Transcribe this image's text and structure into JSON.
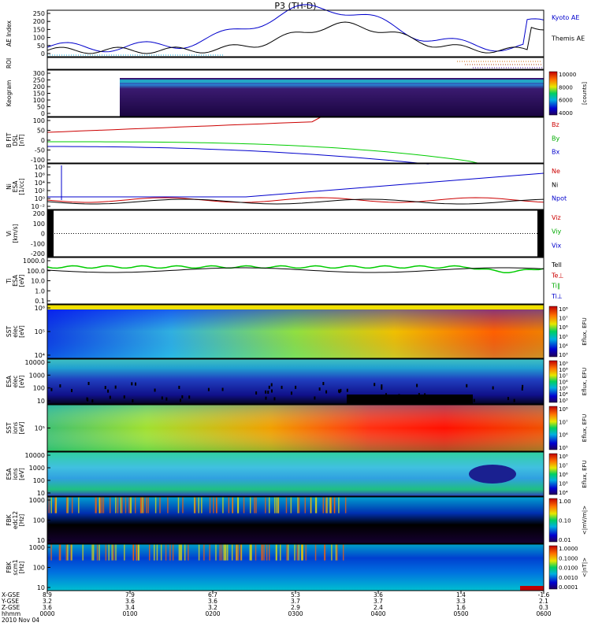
{
  "title": "P3 (TH-D)",
  "footer": {
    "row_labels": [
      "X-GSE",
      "Y-GSE",
      "Z-GSE",
      "hhmm",
      "2010 Nov 04"
    ],
    "columns": [
      {
        "x": "8.9",
        "y": "3.2",
        "z": "3.6",
        "t": "0000"
      },
      {
        "x": "7.9",
        "y": "3.6",
        "z": "3.4",
        "t": "0100"
      },
      {
        "x": "6.7",
        "y": "3.6",
        "z": "3.2",
        "t": "0200"
      },
      {
        "x": "5.3",
        "y": "3.7",
        "z": "2.9",
        "t": "0300"
      },
      {
        "x": "3.6",
        "y": "3.7",
        "z": "2.4",
        "t": "0400"
      },
      {
        "x": "1.4",
        "y": "3.3",
        "z": "1.6",
        "t": "0500"
      },
      {
        "x": "-1.6",
        "y": "2.1",
        "z": "0.3",
        "t": "0600"
      }
    ]
  },
  "panels": [
    {
      "id": "ae",
      "ylabel": [
        "AE Index"
      ],
      "ticks": [
        "250",
        "200",
        "150",
        "100",
        "50",
        "0"
      ],
      "right": [
        {
          "text": "Kyoto AE",
          "color": "#0000cc"
        },
        {
          "text": "Themis AE",
          "color": "#000000"
        }
      ]
    },
    {
      "id": "roi",
      "ylabel": [
        "ROI"
      ],
      "ticks": [],
      "right": []
    },
    {
      "id": "keo",
      "ylabel": [
        "Keogram"
      ],
      "ticks": [
        "300",
        "250",
        "200",
        "150",
        "100",
        "50",
        "0"
      ],
      "right": [],
      "cbar": {
        "ticks": [
          "10000",
          "8000",
          "6000",
          "4000"
        ],
        "label": "[counts]"
      }
    },
    {
      "id": "b",
      "ylabel": [
        "B FIT",
        "DSL",
        "[nT]"
      ],
      "ticks": [
        "100",
        "50",
        "0",
        "-50",
        "-100"
      ],
      "right": [
        {
          "text": "Bz",
          "color": "#cc0000"
        },
        {
          "text": "By",
          "color": "#00aa00"
        },
        {
          "text": "Bx",
          "color": "#0000cc"
        }
      ]
    },
    {
      "id": "ni",
      "ylabel": [
        "Ni",
        "ESA",
        "[1/cc]"
      ],
      "ticks": [
        "10⁸",
        "10⁶",
        "10⁴",
        "10²",
        "10⁰",
        "10⁻²"
      ],
      "right": [
        {
          "text": "Ne",
          "color": "#cc0000"
        },
        {
          "text": "Ni",
          "color": "#000000"
        },
        {
          "text": "Npot",
          "color": "#0000cc"
        }
      ]
    },
    {
      "id": "vi",
      "ylabel": [
        "Vi",
        "[km/s]"
      ],
      "ticks": [
        "200",
        "100",
        "0",
        "-100",
        "-200"
      ],
      "right": [
        {
          "text": "Viz",
          "color": "#cc0000"
        },
        {
          "text": "Viy",
          "color": "#00aa00"
        },
        {
          "text": "Vix",
          "color": "#0000cc"
        }
      ]
    },
    {
      "id": "ti",
      "ylabel": [
        "Ti",
        "ESA",
        "[eV]"
      ],
      "ticks": [
        "1000.0",
        "100.0",
        "10.0",
        "1.0",
        "0.1"
      ],
      "right": [
        {
          "text": "Tell",
          "color": "#000000"
        },
        {
          "text": "Te⊥",
          "color": "#cc0000"
        },
        {
          "text": "Ti∥",
          "color": "#00aa00"
        },
        {
          "text": "Ti⊥",
          "color": "#0000cc"
        }
      ]
    },
    {
      "id": "sst_e",
      "ylabel": [
        "SST",
        "elec",
        "[eV]"
      ],
      "ticks": [
        "10⁶",
        "10⁵",
        "10⁴"
      ],
      "right": [],
      "cbar": {
        "ticks": [
          "10⁸",
          "10⁷",
          "10⁶",
          "10⁵",
          "10⁴",
          "10³"
        ],
        "label": "Eflux, EFU"
      }
    },
    {
      "id": "esa_e",
      "ylabel": [
        "ESA",
        "elec",
        "[eV]"
      ],
      "ticks": [
        "10000",
        "1000",
        "100",
        "10"
      ],
      "right": [],
      "cbar": {
        "ticks": [
          "10⁹",
          "10⁸",
          "10⁷",
          "10⁶",
          "10⁵",
          "10⁴",
          "10³"
        ],
        "label": "Eflux, EFU"
      }
    },
    {
      "id": "sst_i",
      "ylabel": [
        "SST",
        "ions",
        "[eV]"
      ],
      "ticks": [
        "10⁵"
      ],
      "right": [],
      "cbar": {
        "ticks": [
          "10⁸",
          "10⁷",
          "10⁶",
          "10⁵"
        ],
        "label": "Eflux, EFU"
      }
    },
    {
      "id": "esa_i",
      "ylabel": [
        "ESA",
        "ions",
        "[eV]"
      ],
      "ticks": [
        "10000",
        "1000",
        "100",
        "10"
      ],
      "right": [],
      "cbar": {
        "ticks": [
          "10⁸",
          "10⁷",
          "10⁶",
          "10⁵",
          "10⁴"
        ],
        "label": "Eflux, EFU"
      }
    },
    {
      "id": "fbk_e",
      "ylabel": [
        "FBK",
        "edc12",
        "[Hz]"
      ],
      "ticks": [
        "1000",
        "100",
        "10"
      ],
      "right": [],
      "cbar": {
        "ticks": [
          "1.00",
          "0.10",
          "0.01"
        ],
        "label": "<|mV/m|>"
      }
    },
    {
      "id": "fbk_b",
      "ylabel": [
        "FBK",
        "scm1",
        "[Hz]"
      ],
      "ticks": [
        "1000",
        "100",
        "10"
      ],
      "right": [],
      "cbar": {
        "ticks": [
          "1.0000",
          "0.1000",
          "0.0100",
          "0.0010",
          "0.0001"
        ],
        "label": "<|nT|>"
      }
    }
  ],
  "colors": {
    "kyoto": "#0000cc",
    "themis": "#000000",
    "bz": "#cc0000",
    "by": "#00cc00",
    "bx": "#0000cc"
  }
}
